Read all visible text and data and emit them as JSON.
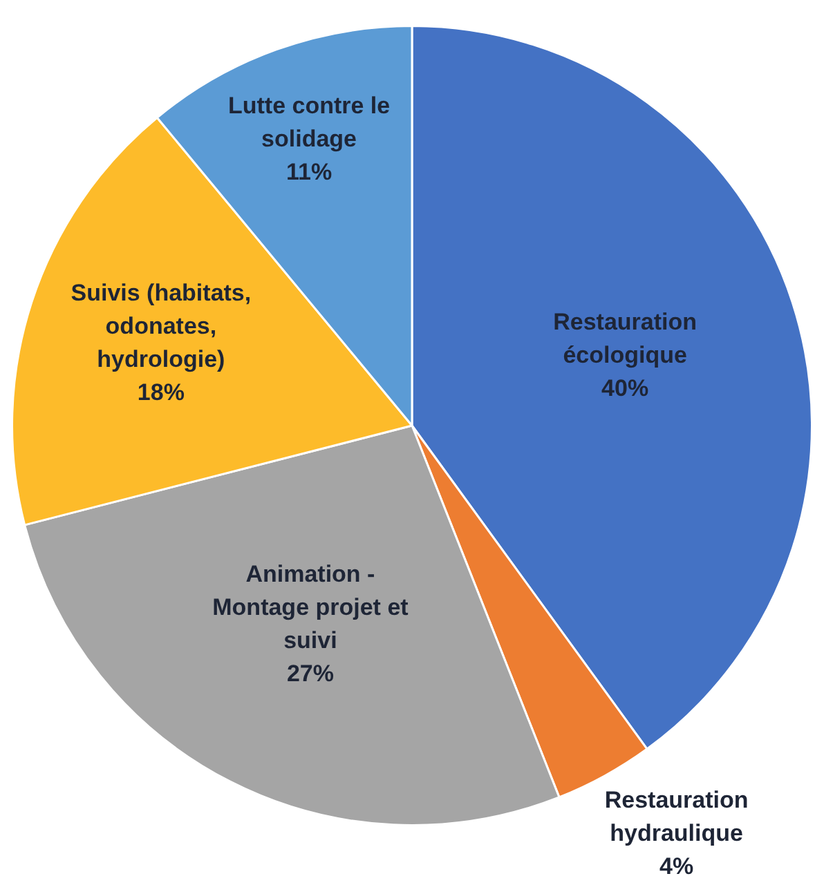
{
  "chart_data": {
    "type": "pie",
    "categories": [
      "Restauration écologique",
      "Restauration hydraulique",
      "Animation - Montage projet et suivi",
      "Suivis (habitats, odonates, hydrologie)",
      "Lutte contre le solidage"
    ],
    "values": [
      40,
      4,
      27,
      18,
      11
    ],
    "colors": [
      "#4472c4",
      "#ed7d31",
      "#a5a5a5",
      "#fdbb2a",
      "#5b9bd5"
    ],
    "value_labels": [
      "40%",
      "4%",
      "27%",
      "18%",
      "11%"
    ],
    "legend": false
  }
}
